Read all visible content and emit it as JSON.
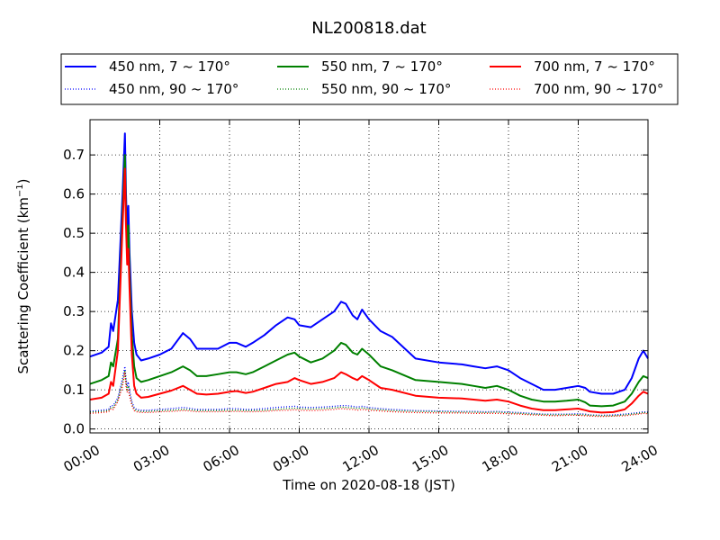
{
  "chart_data": {
    "type": "line",
    "title": "NL200818.dat",
    "xlabel": "Time on 2020-08-18 (JST)",
    "ylabel_main": "Scattering Coefficient (km",
    "ylabel_sup": "−1",
    "ylabel_close": ")",
    "xlim": [
      0,
      24
    ],
    "ylim": [
      -0.01,
      0.79
    ],
    "x_ticks": [
      0,
      3,
      6,
      9,
      12,
      15,
      18,
      21,
      24
    ],
    "x_tick_labels": [
      "00:00",
      "03:00",
      "06:00",
      "09:00",
      "12:00",
      "15:00",
      "18:00",
      "21:00",
      "24:00"
    ],
    "y_ticks": [
      0.0,
      0.1,
      0.2,
      0.3,
      0.4,
      0.5,
      0.6,
      0.7
    ],
    "y_tick_labels": [
      "0.0",
      "0.1",
      "0.2",
      "0.3",
      "0.4",
      "0.5",
      "0.6",
      "0.7"
    ],
    "grid": true,
    "legend_position": "above plot",
    "x": [
      0.0,
      0.5,
      0.8,
      0.9,
      1.0,
      1.2,
      1.4,
      1.5,
      1.55,
      1.6,
      1.65,
      1.7,
      1.8,
      1.9,
      2.0,
      2.2,
      2.5,
      3.0,
      3.5,
      4.0,
      4.3,
      4.6,
      5.0,
      5.5,
      6.0,
      6.3,
      6.7,
      7.0,
      7.5,
      8.0,
      8.5,
      8.8,
      9.0,
      9.5,
      10.0,
      10.5,
      10.8,
      11.0,
      11.3,
      11.5,
      11.7,
      12.0,
      12.5,
      13.0,
      14.0,
      15.0,
      16.0,
      16.5,
      17.0,
      17.5,
      18.0,
      18.5,
      19.0,
      19.5,
      20.0,
      20.5,
      21.0,
      21.3,
      21.5,
      22.0,
      22.5,
      23.0,
      23.3,
      23.6,
      23.8,
      24.0
    ],
    "series": [
      {
        "name": "450 nm, 7 ~ 170°",
        "color": "#0000ff",
        "style": "solid",
        "values": [
          0.185,
          0.195,
          0.21,
          0.27,
          0.25,
          0.33,
          0.6,
          0.755,
          0.6,
          0.5,
          0.57,
          0.45,
          0.3,
          0.22,
          0.19,
          0.175,
          0.18,
          0.19,
          0.205,
          0.245,
          0.23,
          0.205,
          0.205,
          0.205,
          0.22,
          0.22,
          0.21,
          0.22,
          0.24,
          0.265,
          0.285,
          0.28,
          0.265,
          0.26,
          0.28,
          0.3,
          0.325,
          0.32,
          0.29,
          0.28,
          0.305,
          0.28,
          0.25,
          0.235,
          0.18,
          0.17,
          0.165,
          0.16,
          0.155,
          0.16,
          0.15,
          0.13,
          0.115,
          0.1,
          0.1,
          0.105,
          0.11,
          0.105,
          0.095,
          0.09,
          0.09,
          0.1,
          0.13,
          0.18,
          0.2,
          0.18
        ]
      },
      {
        "name": "550 nm, 7 ~ 170°",
        "color": "#008000",
        "style": "solid",
        "values": [
          0.115,
          0.125,
          0.135,
          0.17,
          0.16,
          0.23,
          0.55,
          0.7,
          0.55,
          0.45,
          0.52,
          0.4,
          0.24,
          0.16,
          0.13,
          0.12,
          0.125,
          0.135,
          0.145,
          0.16,
          0.15,
          0.135,
          0.135,
          0.14,
          0.145,
          0.145,
          0.14,
          0.145,
          0.16,
          0.175,
          0.19,
          0.195,
          0.185,
          0.17,
          0.18,
          0.2,
          0.22,
          0.215,
          0.195,
          0.19,
          0.205,
          0.19,
          0.16,
          0.15,
          0.125,
          0.12,
          0.115,
          0.11,
          0.105,
          0.11,
          0.1,
          0.085,
          0.075,
          0.07,
          0.07,
          0.072,
          0.075,
          0.068,
          0.06,
          0.058,
          0.06,
          0.07,
          0.09,
          0.12,
          0.135,
          0.13
        ]
      },
      {
        "name": "700 nm, 7 ~ 170°",
        "color": "#ff0000",
        "style": "solid",
        "values": [
          0.075,
          0.08,
          0.09,
          0.12,
          0.11,
          0.2,
          0.52,
          0.665,
          0.52,
          0.42,
          0.46,
          0.36,
          0.19,
          0.11,
          0.09,
          0.08,
          0.082,
          0.09,
          0.098,
          0.11,
          0.1,
          0.09,
          0.088,
          0.09,
          0.095,
          0.097,
          0.092,
          0.095,
          0.105,
          0.115,
          0.12,
          0.13,
          0.125,
          0.115,
          0.12,
          0.13,
          0.145,
          0.14,
          0.13,
          0.125,
          0.135,
          0.125,
          0.105,
          0.1,
          0.085,
          0.08,
          0.078,
          0.075,
          0.072,
          0.075,
          0.07,
          0.06,
          0.052,
          0.048,
          0.048,
          0.05,
          0.052,
          0.048,
          0.045,
          0.042,
          0.043,
          0.05,
          0.065,
          0.085,
          0.095,
          0.09
        ]
      },
      {
        "name": "450 nm, 90 ~ 170°",
        "color": "#0000ff",
        "style": "dotted",
        "values": [
          0.045,
          0.048,
          0.05,
          0.06,
          0.06,
          0.08,
          0.13,
          0.16,
          0.13,
          0.11,
          0.12,
          0.1,
          0.07,
          0.055,
          0.05,
          0.048,
          0.048,
          0.05,
          0.052,
          0.055,
          0.053,
          0.05,
          0.05,
          0.05,
          0.052,
          0.052,
          0.05,
          0.05,
          0.052,
          0.055,
          0.057,
          0.058,
          0.056,
          0.055,
          0.056,
          0.058,
          0.06,
          0.06,
          0.058,
          0.056,
          0.058,
          0.055,
          0.052,
          0.05,
          0.047,
          0.046,
          0.045,
          0.045,
          0.044,
          0.045,
          0.043,
          0.042,
          0.04,
          0.038,
          0.038,
          0.038,
          0.039,
          0.038,
          0.036,
          0.035,
          0.036,
          0.038,
          0.04,
          0.042,
          0.044,
          0.043
        ]
      },
      {
        "name": "550 nm, 90 ~ 170°",
        "color": "#008000",
        "style": "dotted",
        "values": [
          0.043,
          0.045,
          0.047,
          0.055,
          0.055,
          0.075,
          0.12,
          0.15,
          0.12,
          0.1,
          0.11,
          0.09,
          0.065,
          0.05,
          0.047,
          0.045,
          0.045,
          0.047,
          0.048,
          0.05,
          0.049,
          0.047,
          0.047,
          0.047,
          0.048,
          0.048,
          0.047,
          0.047,
          0.048,
          0.05,
          0.052,
          0.053,
          0.052,
          0.051,
          0.052,
          0.054,
          0.056,
          0.055,
          0.054,
          0.052,
          0.054,
          0.051,
          0.049,
          0.047,
          0.045,
          0.044,
          0.043,
          0.043,
          0.042,
          0.043,
          0.041,
          0.04,
          0.038,
          0.037,
          0.036,
          0.037,
          0.037,
          0.036,
          0.035,
          0.034,
          0.034,
          0.036,
          0.038,
          0.04,
          0.042,
          0.041
        ]
      },
      {
        "name": "700 nm, 90 ~ 170°",
        "color": "#ff0000",
        "style": "dotted",
        "values": [
          0.04,
          0.042,
          0.044,
          0.052,
          0.05,
          0.07,
          0.11,
          0.145,
          0.11,
          0.095,
          0.1,
          0.085,
          0.06,
          0.047,
          0.044,
          0.042,
          0.042,
          0.044,
          0.045,
          0.047,
          0.046,
          0.044,
          0.044,
          0.044,
          0.045,
          0.045,
          0.044,
          0.044,
          0.045,
          0.047,
          0.048,
          0.049,
          0.048,
          0.047,
          0.048,
          0.05,
          0.052,
          0.051,
          0.05,
          0.048,
          0.05,
          0.048,
          0.046,
          0.044,
          0.042,
          0.041,
          0.041,
          0.04,
          0.04,
          0.04,
          0.039,
          0.038,
          0.036,
          0.035,
          0.034,
          0.035,
          0.035,
          0.034,
          0.033,
          0.032,
          0.033,
          0.034,
          0.036,
          0.038,
          0.04,
          0.039
        ]
      }
    ]
  }
}
